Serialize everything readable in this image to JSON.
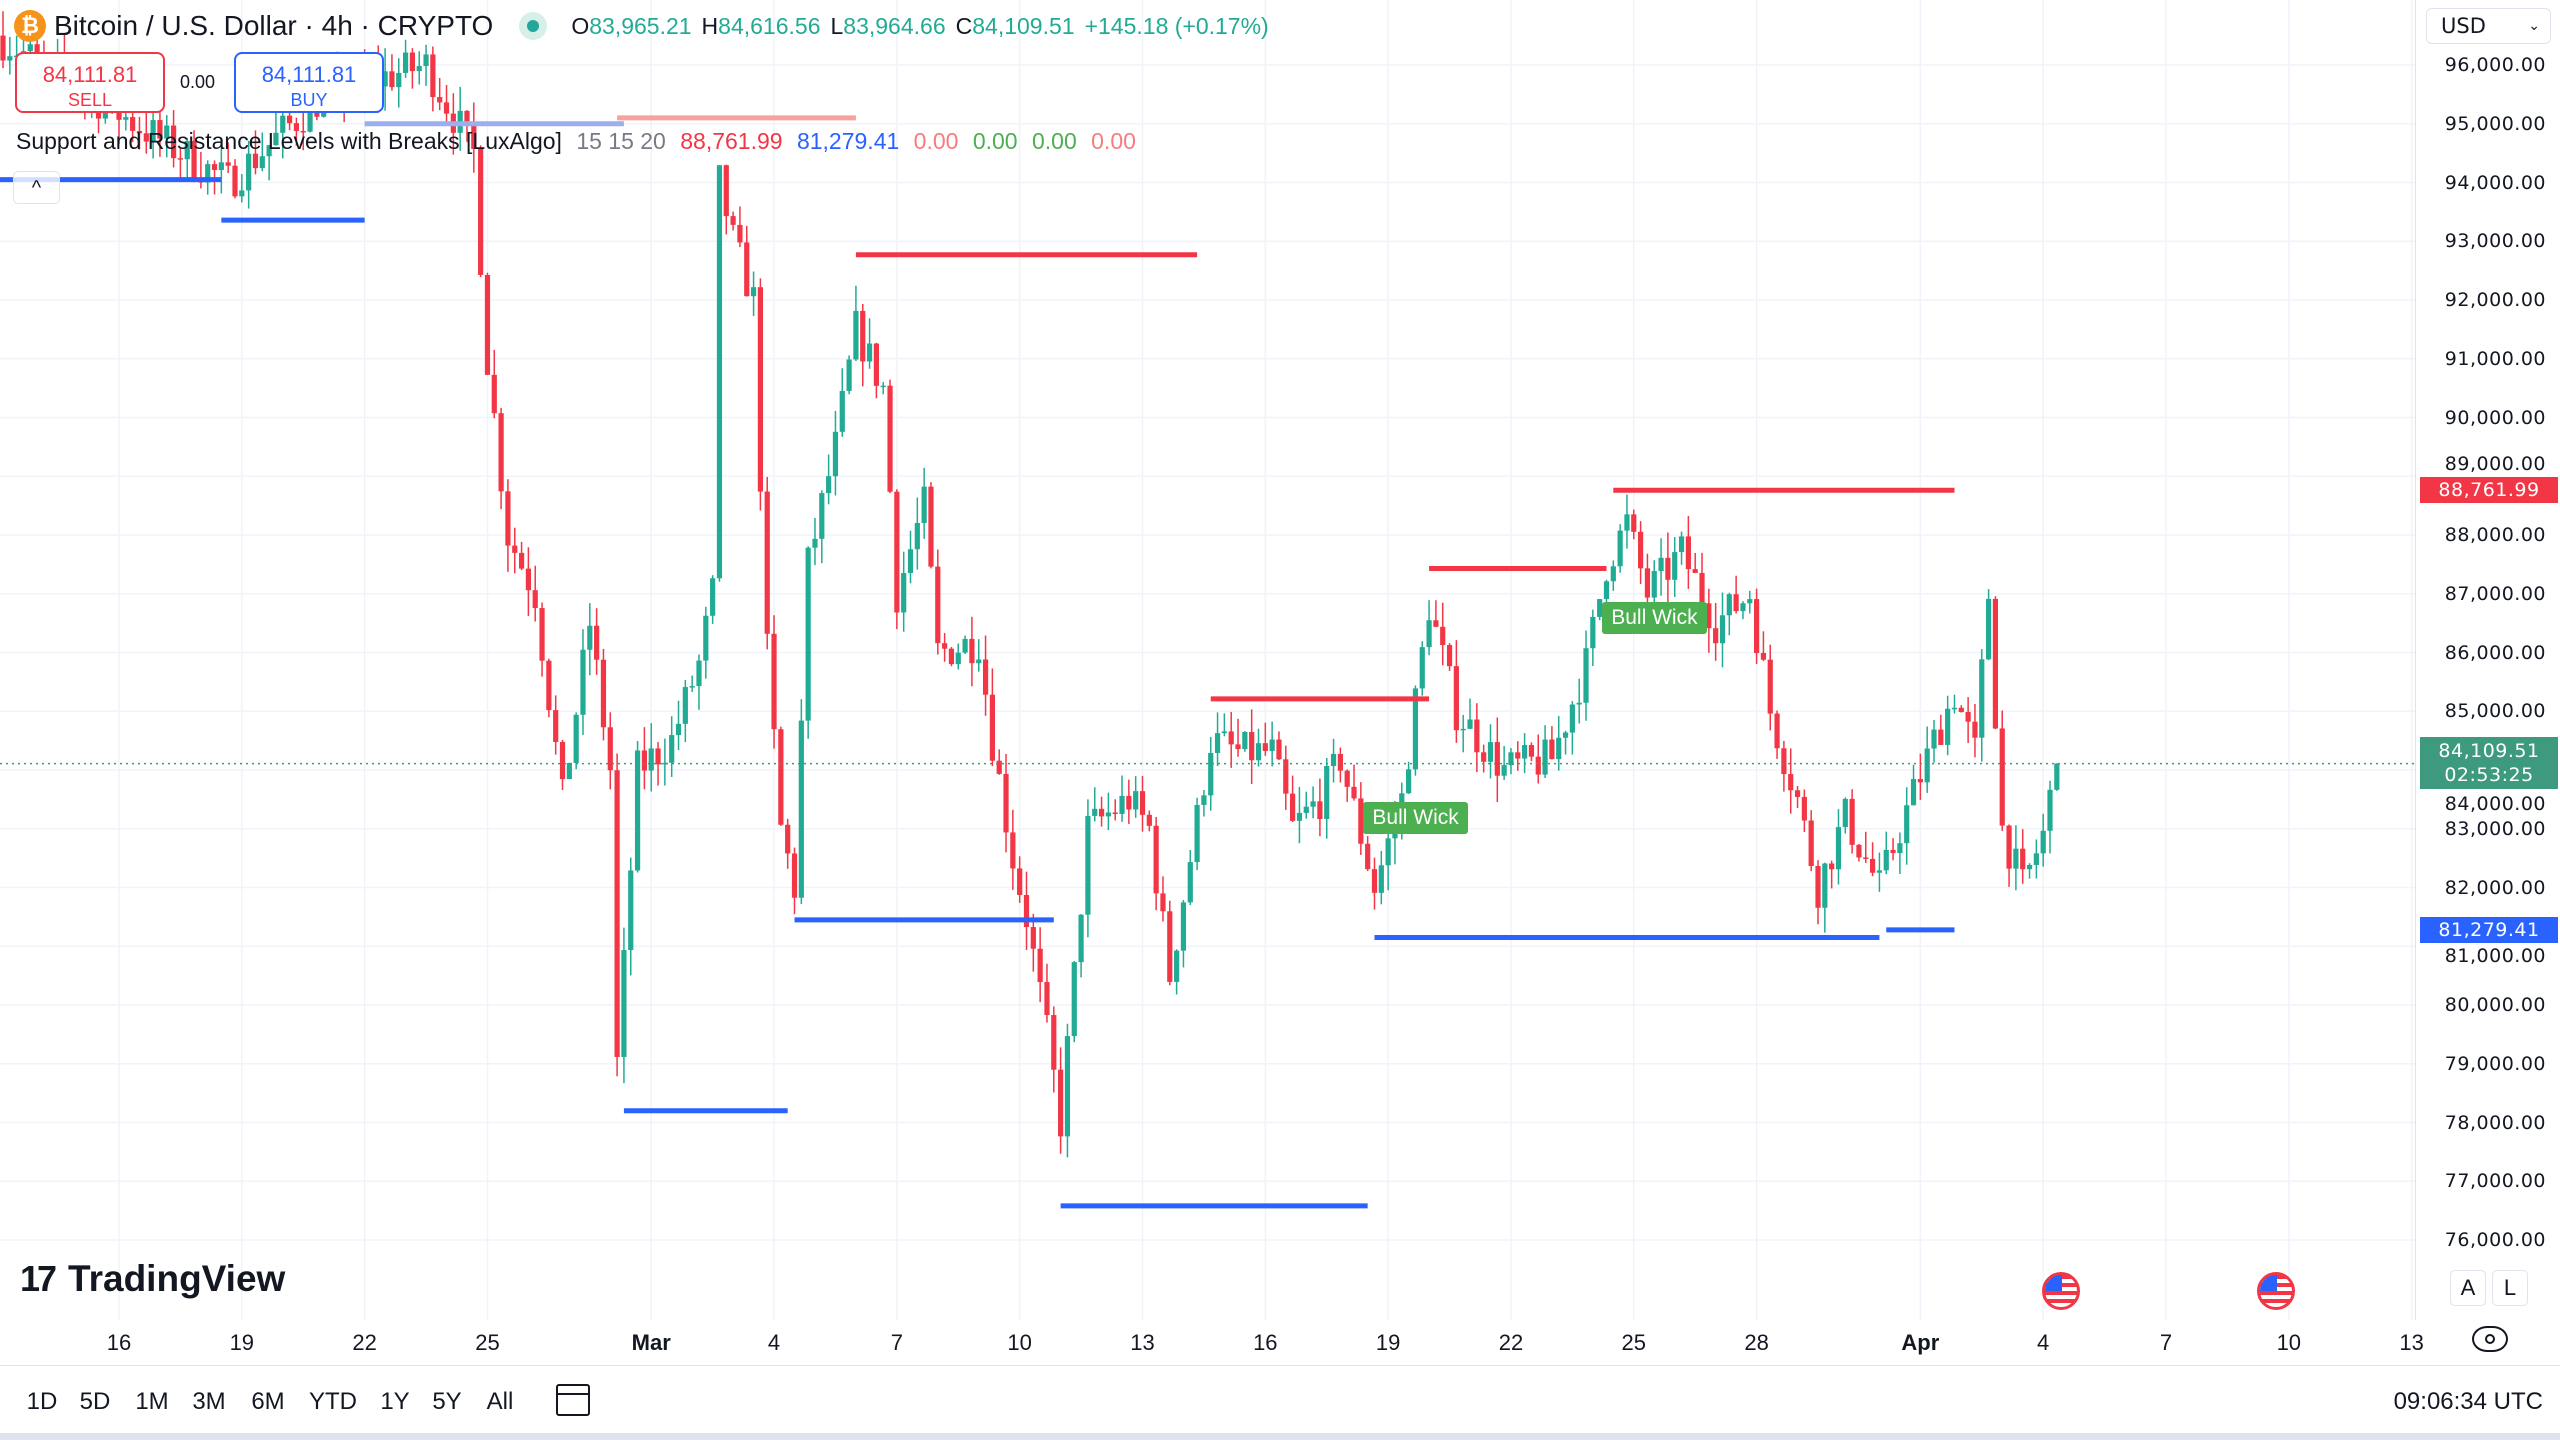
{
  "header": {
    "symbol_icon": "bitcoin-icon",
    "title": "Bitcoin / U.S. Dollar · 4h · CRYPTO",
    "ohlc": {
      "o_label": "O",
      "o": "83,965.21",
      "h_label": "H",
      "h": "84,616.56",
      "l_label": "L",
      "l": "83,964.66",
      "c_label": "C",
      "c": "84,109.51",
      "change": "+145.18 (+0.17%)"
    }
  },
  "trade": {
    "sell_price": "84,111.81",
    "sell_label": "SELL",
    "spread": "0.00",
    "buy_price": "84,111.81",
    "buy_label": "BUY"
  },
  "indicator": {
    "name": "Support and Resistance Levels with Breaks [LuxAlgo]",
    "params": "15 15 20",
    "resistance": "88,761.99",
    "support": "81,279.41",
    "v1": "0.00",
    "v2": "0.00",
    "v3": "0.00",
    "v4": "0.00"
  },
  "collapse_icon": "^",
  "price_axis": {
    "currency": "USD",
    "ticks": [
      "96,000.00",
      "95,000.00",
      "94,000.00",
      "93,000.00",
      "92,000.00",
      "91,000.00",
      "90,000.00",
      "89,000.00",
      "88,000.00",
      "87,000.00",
      "86,000.00",
      "85,000.00",
      "84,000.00",
      "83,000.00",
      "82,000.00",
      "81,000.00",
      "80,000.00",
      "79,000.00",
      "78,000.00",
      "77,000.00",
      "76,000.00"
    ],
    "resistance_badge": "88,761.99",
    "last_price_badge": "84,109.51",
    "countdown": "02:53:25",
    "support_badge": "81,279.41",
    "colors": {
      "up": "#22ab94",
      "down": "#f23645",
      "resistance": "#f23645",
      "support": "#2962ff",
      "last": "#3d9a7f"
    }
  },
  "time_axis": {
    "ticks": [
      {
        "label": "16",
        "date": "Feb 16"
      },
      {
        "label": "19",
        "date": "Feb 19"
      },
      {
        "label": "22",
        "date": "Feb 22"
      },
      {
        "label": "25",
        "date": "Feb 25"
      },
      {
        "label": "Mar",
        "date": "Mar 1",
        "bold": true
      },
      {
        "label": "4",
        "date": "Mar 4"
      },
      {
        "label": "7",
        "date": "Mar 7"
      },
      {
        "label": "10",
        "date": "Mar 10"
      },
      {
        "label": "13",
        "date": "Mar 13"
      },
      {
        "label": "16",
        "date": "Mar 16"
      },
      {
        "label": "19",
        "date": "Mar 19"
      },
      {
        "label": "22",
        "date": "Mar 22"
      },
      {
        "label": "25",
        "date": "Mar 25"
      },
      {
        "label": "28",
        "date": "Mar 28"
      },
      {
        "label": "Apr",
        "date": "Apr 1",
        "bold": true
      },
      {
        "label": "4",
        "date": "Apr 4"
      },
      {
        "label": "7",
        "date": "Apr 7"
      },
      {
        "label": "10",
        "date": "Apr 10"
      },
      {
        "label": "13",
        "date": "Apr 13"
      }
    ]
  },
  "chart_data": {
    "type": "candlestick",
    "interval": "4h",
    "price_path": [
      [
        "Feb 13 00:00",
        96500
      ],
      [
        "Feb 18 16:00",
        94000
      ],
      [
        "Feb 21 00:00",
        95500
      ],
      [
        "Feb 23 12:00",
        96000
      ],
      [
        "Feb 24 16:00",
        94500
      ],
      [
        "Feb 25 00:00",
        91000
      ],
      [
        "Feb 25 12:00",
        88000
      ],
      [
        "Feb 26 04:00",
        87000
      ],
      [
        "Feb 26 20:00",
        83500
      ],
      [
        "Feb 27 12:00",
        86500
      ],
      [
        "Feb 28 00:00",
        84000
      ],
      [
        "Feb 28 04:00",
        79000
      ],
      [
        "Feb 28 16:00",
        84000
      ],
      [
        "Mar 1 12:00",
        84500
      ],
      [
        "Mar 2 04:00",
        85800
      ],
      [
        "Mar 2 12:00",
        87000
      ],
      [
        "Mar 2 16:00",
        94000
      ],
      [
        "Mar 3 00:00",
        93000
      ],
      [
        "Mar 3 12:00",
        92000
      ],
      [
        "Mar 3 20:00",
        86000
      ],
      [
        "Mar 4 04:00",
        83000
      ],
      [
        "Mar 4 12:00",
        82000
      ],
      [
        "Mar 4 20:00",
        87500
      ],
      [
        "Mar 5 12:00",
        89500
      ],
      [
        "Mar 6 00:00",
        91500
      ],
      [
        "Mar 6 16:00",
        90500
      ],
      [
        "Mar 7 00:00",
        87000
      ],
      [
        "Mar 7 16:00",
        88500
      ],
      [
        "Mar 8 00:00",
        86000
      ],
      [
        "Mar 9 00:00",
        86200
      ],
      [
        "Mar 9 08:00",
        84500
      ],
      [
        "Mar 9 20:00",
        82500
      ],
      [
        "Mar 10 04:00",
        81500
      ],
      [
        "Mar 10 16:00",
        79500
      ],
      [
        "Mar 11 00:00",
        78000
      ],
      [
        "Mar 11 16:00",
        83000
      ],
      [
        "Mar 12 16:00",
        83500
      ],
      [
        "Mar 13 04:00",
        83000
      ],
      [
        "Mar 13 16:00",
        80500
      ],
      [
        "Mar 14 04:00",
        82500
      ],
      [
        "Mar 14 16:00",
        84500
      ],
      [
        "Mar 15 08:00",
        84300
      ],
      [
        "Mar 16 04:00",
        84300
      ],
      [
        "Mar 16 16:00",
        83000
      ],
      [
        "Mar 17 08:00",
        83500
      ],
      [
        "Mar 17 20:00",
        84200
      ],
      [
        "Mar 18 16:00",
        82000
      ],
      [
        "Mar 19 08:00",
        83500
      ],
      [
        "Mar 20 00:00",
        86800
      ],
      [
        "Mar 20 16:00",
        85000
      ],
      [
        "Mar 21 20:00",
        84000
      ],
      [
        "Mar 23 00:00",
        84200
      ],
      [
        "Mar 23 20:00",
        85800
      ],
      [
        "Mar 24 08:00",
        87500
      ],
      [
        "Mar 24 20:00",
        88200
      ],
      [
        "Mar 25 08:00",
        87000
      ],
      [
        "Mar 26 04:00",
        87700
      ],
      [
        "Mar 27 00:00",
        86500
      ],
      [
        "Mar 27 20:00",
        87000
      ],
      [
        "Mar 28 08:00",
        85000
      ],
      [
        "Mar 29 00:00",
        83500
      ],
      [
        "Mar 29 12:00",
        82000
      ],
      [
        "Mar 30 04:00",
        83200
      ],
      [
        "Mar 31 00:00",
        82000
      ],
      [
        "Mar 31 12:00",
        83000
      ],
      [
        "Apr 1 08:00",
        84500
      ],
      [
        "Apr 1 20:00",
        85300
      ],
      [
        "Apr 2 08:00",
        84300
      ],
      [
        "Apr 2 16:00",
        87000
      ],
      [
        "Apr 3 00:00",
        83000
      ],
      [
        "Apr 3 12:00",
        82000
      ],
      [
        "Apr 4 00:00",
        82900
      ],
      [
        "Apr 4 08:00",
        84109.51
      ]
    ],
    "resistance_levels": [
      {
        "from": "Feb 28 04:00",
        "to": "Mar 6 00:00",
        "price": 95100,
        "faded": true
      },
      {
        "from": "Mar 6 00:00",
        "to": "Mar 14 08:00",
        "price": 92770
      },
      {
        "from": "Mar 14 16:00",
        "to": "Mar 20 00:00",
        "price": 85210
      },
      {
        "from": "Mar 20 00:00",
        "to": "Mar 24 08:00",
        "price": 87430
      },
      {
        "from": "Mar 24 12:00",
        "to": "Apr 1 20:00",
        "price": 88761.99
      }
    ],
    "support_levels": [
      {
        "from": "Feb 13 00:00",
        "to": "Feb 18 12:00",
        "price": 94050
      },
      {
        "from": "Feb 18 12:00",
        "to": "Feb 22 00:00",
        "price": 93360
      },
      {
        "from": "Feb 22 00:00",
        "to": "Feb 28 08:00",
        "price": 95000,
        "faded": true
      },
      {
        "from": "Feb 28 08:00",
        "to": "Mar 4 08:00",
        "price": 78200
      },
      {
        "from": "Mar 4 12:00",
        "to": "Mar 10 20:00",
        "price": 81450
      },
      {
        "from": "Mar 11 00:00",
        "to": "Mar 18 12:00",
        "price": 76580
      },
      {
        "from": "Mar 18 16:00",
        "to": "Mar 31 00:00",
        "price": 81150
      },
      {
        "from": "Mar 31 04:00",
        "to": "Apr 1 20:00",
        "price": 81279.41
      }
    ],
    "labels": [
      {
        "text": "Bull Wick",
        "date": "Mar 19 16:00",
        "price": 83150
      },
      {
        "text": "Bull Wick",
        "date": "Mar 25 12:00",
        "price": 86550
      }
    ],
    "last_price": 84109.51,
    "ylim": [
      75500,
      97000
    ],
    "grid": true
  },
  "bottom": {
    "ranges": [
      "1D",
      "5D",
      "1M",
      "3M",
      "6M",
      "YTD",
      "1Y",
      "5Y",
      "All"
    ],
    "clock": "09:06:34 UTC",
    "brand": "TradingView",
    "auto_label": "A",
    "log_label": "L"
  }
}
